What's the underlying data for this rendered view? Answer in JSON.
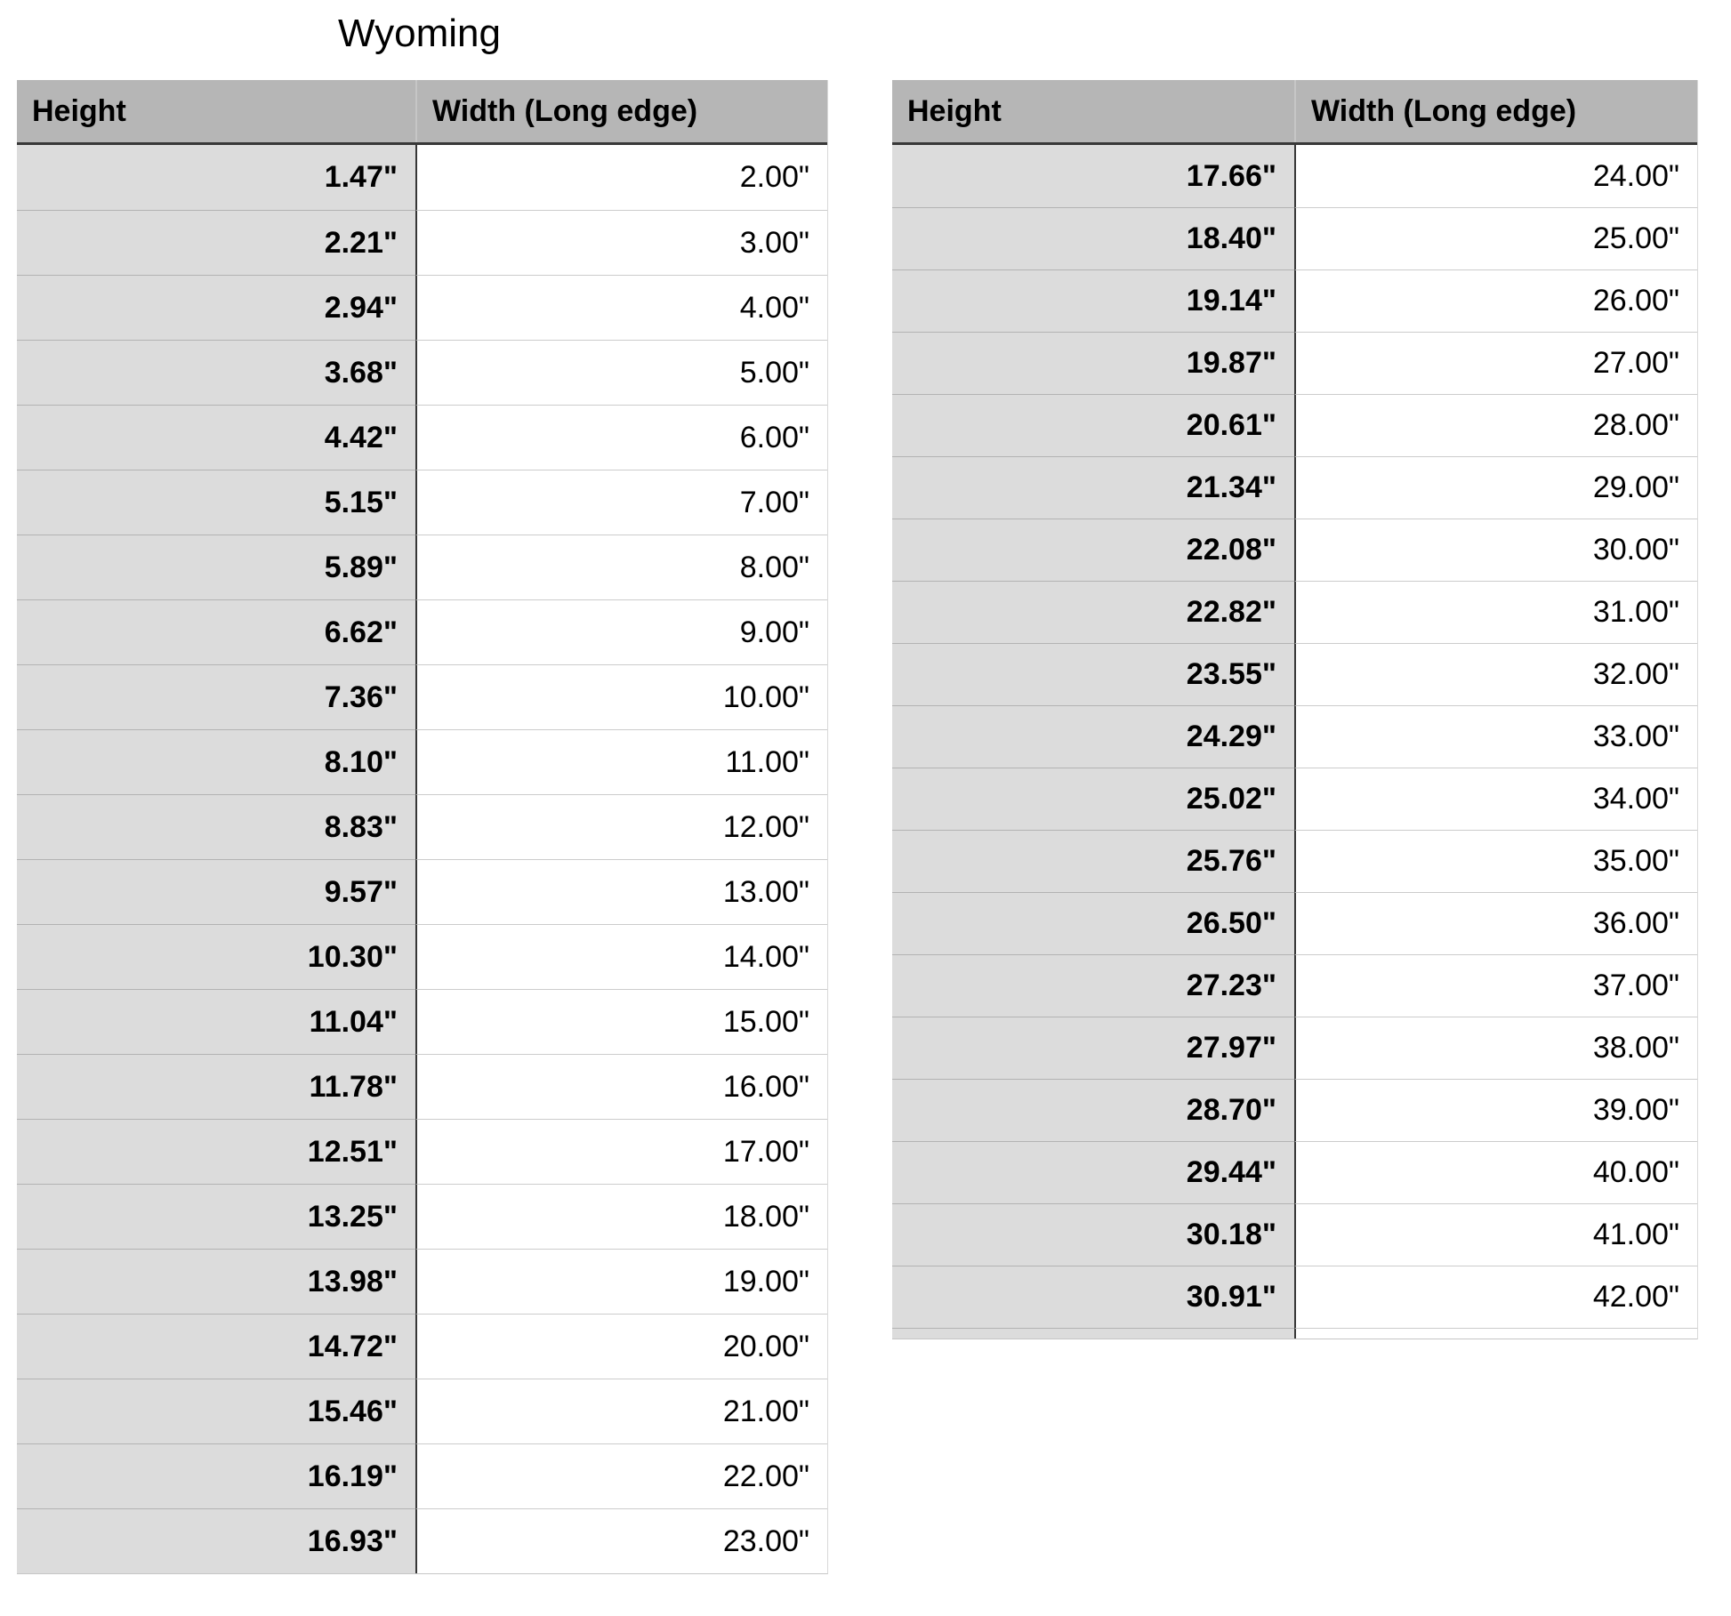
{
  "title": "Wyoming",
  "columns": {
    "height": "Height",
    "width": "Width (Long edge)"
  },
  "tables": [
    {
      "name": "sizes-2-to-23-inches",
      "rows": [
        {
          "height": "1.47\"",
          "width": "2.00\""
        },
        {
          "height": "2.21\"",
          "width": "3.00\""
        },
        {
          "height": "2.94\"",
          "width": "4.00\""
        },
        {
          "height": "3.68\"",
          "width": "5.00\""
        },
        {
          "height": "4.42\"",
          "width": "6.00\""
        },
        {
          "height": "5.15\"",
          "width": "7.00\""
        },
        {
          "height": "5.89\"",
          "width": "8.00\""
        },
        {
          "height": "6.62\"",
          "width": "9.00\""
        },
        {
          "height": "7.36\"",
          "width": "10.00\""
        },
        {
          "height": "8.10\"",
          "width": "11.00\""
        },
        {
          "height": "8.83\"",
          "width": "12.00\""
        },
        {
          "height": "9.57\"",
          "width": "13.00\""
        },
        {
          "height": "10.30\"",
          "width": "14.00\""
        },
        {
          "height": "11.04\"",
          "width": "15.00\""
        },
        {
          "height": "11.78\"",
          "width": "16.00\""
        },
        {
          "height": "12.51\"",
          "width": "17.00\""
        },
        {
          "height": "13.25\"",
          "width": "18.00\""
        },
        {
          "height": "13.98\"",
          "width": "19.00\""
        },
        {
          "height": "14.72\"",
          "width": "20.00\""
        },
        {
          "height": "15.46\"",
          "width": "21.00\""
        },
        {
          "height": "16.19\"",
          "width": "22.00\""
        },
        {
          "height": "16.93\"",
          "width": "23.00\""
        }
      ]
    },
    {
      "name": "sizes-24-to-42-inches",
      "rows": [
        {
          "height": "17.66\"",
          "width": "24.00\""
        },
        {
          "height": "18.40\"",
          "width": "25.00\""
        },
        {
          "height": "19.14\"",
          "width": "26.00\""
        },
        {
          "height": "19.87\"",
          "width": "27.00\""
        },
        {
          "height": "20.61\"",
          "width": "28.00\""
        },
        {
          "height": "21.34\"",
          "width": "29.00\""
        },
        {
          "height": "22.08\"",
          "width": "30.00\""
        },
        {
          "height": "22.82\"",
          "width": "31.00\""
        },
        {
          "height": "23.55\"",
          "width": "32.00\""
        },
        {
          "height": "24.29\"",
          "width": "33.00\""
        },
        {
          "height": "25.02\"",
          "width": "34.00\""
        },
        {
          "height": "25.76\"",
          "width": "35.00\""
        },
        {
          "height": "26.50\"",
          "width": "36.00\""
        },
        {
          "height": "27.23\"",
          "width": "37.00\""
        },
        {
          "height": "27.97\"",
          "width": "38.00\""
        },
        {
          "height": "28.70\"",
          "width": "39.00\""
        },
        {
          "height": "29.44\"",
          "width": "40.00\""
        },
        {
          "height": "30.18\"",
          "width": "41.00\""
        },
        {
          "height": "30.91\"",
          "width": "42.00\""
        }
      ]
    }
  ],
  "colors": {
    "header_bg": "#b6b6b6",
    "label_column_bg": "#dcdcdc",
    "value_column_bg": "#ffffff",
    "column_divider": "#373737",
    "header_rule": "#383838",
    "row_line_on_gray": "#b3b3b3",
    "row_line_on_white": "#cccccc"
  }
}
